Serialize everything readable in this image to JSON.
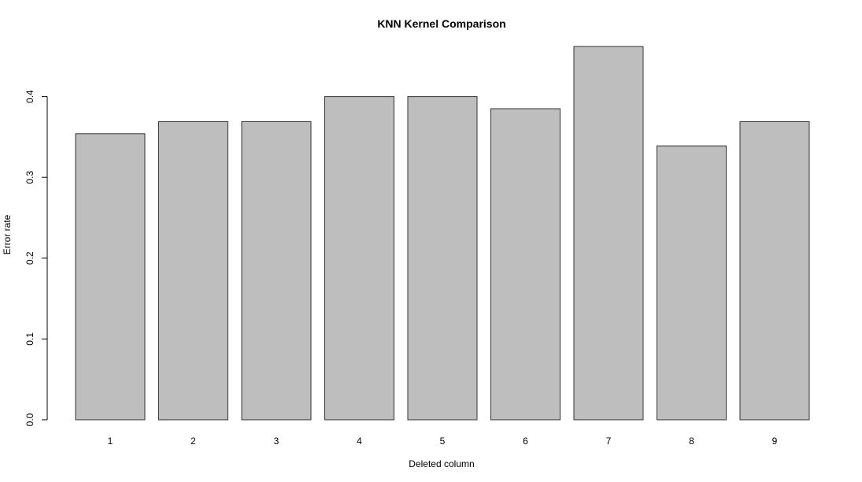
{
  "chart_data": {
    "type": "bar",
    "title": "KNN Kernel Comparison",
    "xlabel": "Deleted column",
    "ylabel": "Error rate",
    "categories": [
      "1",
      "2",
      "3",
      "4",
      "5",
      "6",
      "7",
      "8",
      "9"
    ],
    "values": [
      0.354,
      0.369,
      0.369,
      0.4,
      0.4,
      0.385,
      0.462,
      0.339,
      0.369
    ],
    "ylim": [
      0,
      0.462
    ],
    "yticks": [
      0.0,
      0.1,
      0.2,
      0.3,
      0.4
    ],
    "ytick_labels": [
      "0.0",
      "0.1",
      "0.2",
      "0.3",
      "0.4"
    ],
    "bar_fill": "#bebebe",
    "bar_stroke": "#333333",
    "grid": false,
    "legend": "none"
  }
}
